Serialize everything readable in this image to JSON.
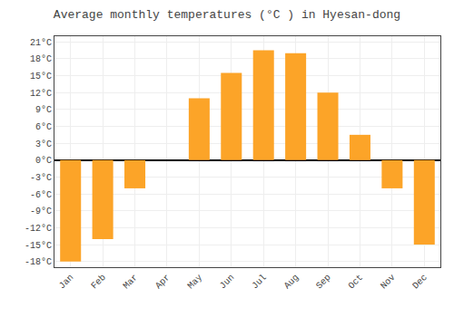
{
  "chart_data": {
    "type": "bar",
    "title": "Average monthly temperatures (°C ) in Hyesan-dong",
    "categories": [
      "Jan",
      "Feb",
      "Mar",
      "Apr",
      "May",
      "Jun",
      "Jul",
      "Aug",
      "Sep",
      "Oct",
      "Nov",
      "Dec"
    ],
    "values": [
      -18,
      -14,
      -5,
      0,
      11,
      15.5,
      19.5,
      19,
      12,
      4.5,
      -5,
      -15
    ],
    "color": "#FCA428",
    "ylim": [
      -19,
      22
    ],
    "yticks": [
      {
        "value": -18,
        "label": "-18°C"
      },
      {
        "value": -15,
        "label": "-15°C"
      },
      {
        "value": -12,
        "label": "-12°C"
      },
      {
        "value": -9,
        "label": "-9°C"
      },
      {
        "value": -6,
        "label": "-6°C"
      },
      {
        "value": -3,
        "label": "-3°C"
      },
      {
        "value": 0,
        "label": "0°C"
      },
      {
        "value": 3,
        "label": "3°C"
      },
      {
        "value": 6,
        "label": "6°C"
      },
      {
        "value": 9,
        "label": "9°C"
      },
      {
        "value": 12,
        "label": "12°C"
      },
      {
        "value": 15,
        "label": "15°C"
      },
      {
        "value": 18,
        "label": "18°C"
      },
      {
        "value": 21,
        "label": "21°C"
      }
    ],
    "grid": true
  }
}
